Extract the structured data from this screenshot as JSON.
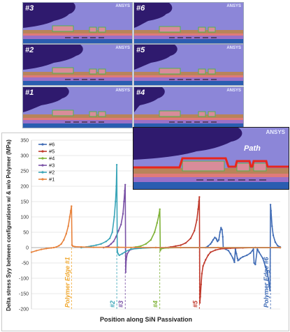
{
  "panels": [
    {
      "id": "p3",
      "label": "#3",
      "ansys": "ANSYS"
    },
    {
      "id": "p6",
      "label": "#6",
      "ansys": "ANSYS"
    },
    {
      "id": "p2",
      "label": "#2",
      "ansys": "ANSYS"
    },
    {
      "id": "p5",
      "label": "#5",
      "ansys": "ANSYS"
    },
    {
      "id": "p1",
      "label": "#1",
      "ansys": "ANSYS"
    },
    {
      "id": "p4",
      "label": "#4",
      "ansys": "ANSYS"
    },
    {
      "id": "pbig",
      "label": "Path",
      "ansys": "ANSYS"
    }
  ],
  "chart_data": {
    "type": "line",
    "title": "",
    "ylabel": "Delta stress Syy between configurations w/ & w/o Polymer (MPa)",
    "xlabel": "Position along SiN Passivation",
    "ylim": [
      -200,
      350
    ],
    "yticks": [
      -200,
      -150,
      -100,
      -50,
      0,
      50,
      100,
      150,
      200,
      250,
      300,
      350
    ],
    "xlim": [
      0,
      100
    ],
    "legend_position": "top-left",
    "series": [
      {
        "name": "#6",
        "color": "#3f6bb5",
        "points": [
          [
            70,
            0
          ],
          [
            71,
            5
          ],
          [
            72,
            12
          ],
          [
            72.5,
            18
          ],
          [
            73,
            25
          ],
          [
            73.7,
            33
          ],
          [
            74.2,
            30
          ],
          [
            74.5,
            25
          ],
          [
            74.8,
            20
          ],
          [
            75.3,
            25
          ],
          [
            75.8,
            50
          ],
          [
            76.2,
            65
          ],
          [
            76.6,
            58
          ],
          [
            76.9,
            35
          ],
          [
            77.1,
            0
          ],
          [
            77.3,
            -2
          ],
          [
            78,
            -5
          ],
          [
            79.2,
            -10
          ],
          [
            80,
            -20
          ],
          [
            81,
            -35
          ],
          [
            81.6,
            -48
          ],
          [
            82,
            -5
          ],
          [
            82.4,
            -20
          ],
          [
            82.8,
            -35
          ],
          [
            83,
            -42
          ],
          [
            83.4,
            -40
          ],
          [
            84,
            -35
          ],
          [
            85,
            -30
          ],
          [
            86.6,
            -25
          ],
          [
            88,
            -18
          ],
          [
            88.8,
            -10
          ],
          [
            89.2,
            -5
          ],
          [
            89.5,
            -50
          ],
          [
            90,
            -55
          ],
          [
            90.8,
            -5
          ],
          [
            91,
            -8
          ],
          [
            91.5,
            -15
          ],
          [
            93,
            -35
          ],
          [
            94,
            -60
          ],
          [
            94.8,
            -80
          ],
          [
            95.2,
            -100
          ],
          [
            95.6,
            -125
          ],
          [
            95.9,
            -140
          ],
          [
            96.1,
            140
          ],
          [
            96.3,
            120
          ],
          [
            96.7,
            70
          ],
          [
            97.2,
            40
          ],
          [
            98,
            18
          ],
          [
            99,
            6
          ],
          [
            100,
            2
          ]
        ]
      },
      {
        "name": "#5",
        "color": "#c0392b",
        "points": [
          [
            54,
            0
          ],
          [
            56,
            2
          ],
          [
            58,
            5
          ],
          [
            60,
            8
          ],
          [
            62,
            15
          ],
          [
            64,
            30
          ],
          [
            65.5,
            55
          ],
          [
            66.5,
            90
          ],
          [
            67,
            125
          ],
          [
            67.3,
            150
          ],
          [
            67.5,
            165
          ],
          [
            67.7,
            -180
          ],
          [
            67.9,
            -160
          ],
          [
            68.2,
            -120
          ],
          [
            68.5,
            -85
          ],
          [
            69,
            -60
          ],
          [
            69.5,
            -50
          ],
          [
            70,
            -40
          ],
          [
            71,
            -25
          ],
          [
            72,
            -15
          ],
          [
            74,
            -8
          ],
          [
            76,
            -4
          ],
          [
            80,
            -2
          ],
          [
            85,
            -1
          ],
          [
            90,
            0
          ],
          [
            100,
            0
          ]
        ]
      },
      {
        "name": "#4",
        "color": "#7fb237",
        "points": [
          [
            40,
            0
          ],
          [
            42,
            2
          ],
          [
            44,
            5
          ],
          [
            46,
            12
          ],
          [
            48,
            25
          ],
          [
            49.5,
            50
          ],
          [
            50.5,
            80
          ],
          [
            51.2,
            105
          ],
          [
            51.6,
            125
          ],
          [
            51.8,
            -10
          ],
          [
            52,
            -5
          ],
          [
            53,
            -2
          ],
          [
            55,
            -1
          ],
          [
            60,
            0
          ],
          [
            100,
            0
          ]
        ]
      },
      {
        "name": "#3",
        "color": "#7a52a6",
        "points": [
          [
            29,
            0
          ],
          [
            30,
            2
          ],
          [
            31,
            5
          ],
          [
            32,
            12
          ],
          [
            33,
            20
          ],
          [
            34,
            35
          ],
          [
            35,
            55
          ],
          [
            36,
            75
          ],
          [
            36.8,
            110
          ],
          [
            37.2,
            150
          ],
          [
            37.5,
            185
          ],
          [
            37.7,
            205
          ],
          [
            37.9,
            -80
          ],
          [
            38.1,
            -40
          ],
          [
            38.5,
            -20
          ],
          [
            39.5,
            -8
          ],
          [
            42,
            -2
          ],
          [
            45,
            0
          ],
          [
            100,
            0
          ]
        ]
      },
      {
        "name": "#2",
        "color": "#3aa5b8",
        "points": [
          [
            20,
            0
          ],
          [
            22,
            2
          ],
          [
            24,
            5
          ],
          [
            26,
            8
          ],
          [
            28,
            12
          ],
          [
            30,
            20
          ],
          [
            31.5,
            30
          ],
          [
            32.5,
            50
          ],
          [
            33.3,
            100
          ],
          [
            33.8,
            150
          ],
          [
            34.1,
            200
          ],
          [
            34.3,
            270
          ],
          [
            34.5,
            -10
          ],
          [
            34.8,
            -20
          ],
          [
            35.3,
            -25
          ],
          [
            36.5,
            -20
          ],
          [
            38,
            -12
          ],
          [
            40,
            -5
          ],
          [
            44,
            -2
          ],
          [
            50,
            0
          ],
          [
            100,
            0
          ]
        ]
      },
      {
        "name": "#1",
        "color": "#e8823b",
        "points": [
          [
            0,
            -15
          ],
          [
            2,
            -10
          ],
          [
            4,
            -6
          ],
          [
            6,
            -3
          ],
          [
            8,
            -1
          ],
          [
            9,
            0
          ],
          [
            10,
            2
          ],
          [
            11,
            6
          ],
          [
            12,
            12
          ],
          [
            13,
            25
          ],
          [
            14,
            45
          ],
          [
            14.8,
            70
          ],
          [
            15.4,
            100
          ],
          [
            15.8,
            120
          ],
          [
            16.1,
            135
          ],
          [
            16.3,
            8
          ],
          [
            16.6,
            5
          ],
          [
            17.5,
            3
          ],
          [
            20,
            2
          ],
          [
            25,
            1
          ],
          [
            35,
            1
          ],
          [
            50,
            0
          ],
          [
            60,
            0
          ],
          [
            75,
            0
          ],
          [
            100,
            0
          ]
        ]
      }
    ],
    "annotations": [
      {
        "text": "Polymer  Edge #1",
        "color": "#f0a830",
        "x": 16.1
      },
      {
        "text": "#2",
        "color": "#3aa5b8",
        "x": 34.3
      },
      {
        "text": "#3",
        "color": "#7a52a6",
        "x": 37.7
      },
      {
        "text": "#4",
        "color": "#7fb237",
        "x": 51.6
      },
      {
        "text": "#5",
        "color": "#c0392b",
        "x": 67.5
      },
      {
        "text": "Polymer  Edge #6",
        "color": "#3f6bb5",
        "x": 96.1
      }
    ]
  }
}
